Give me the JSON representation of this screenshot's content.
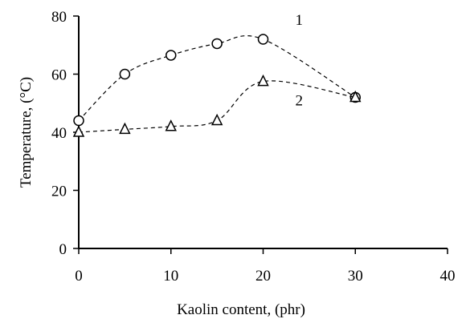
{
  "chart_data": {
    "type": "line",
    "title": "",
    "xlabel": "Kaolin content, (phr)",
    "ylabel": "Temperature, (°C)",
    "xlim": [
      0,
      40
    ],
    "ylim": [
      0,
      80
    ],
    "xticks": [
      0,
      10,
      20,
      30,
      40
    ],
    "yticks": [
      0,
      20,
      40,
      60,
      80
    ],
    "grid": false,
    "series": [
      {
        "name": "1",
        "marker": "circle",
        "line_style": "dashed",
        "x": [
          0,
          5,
          10,
          15,
          20,
          30
        ],
        "y": [
          44,
          60,
          66.5,
          70.5,
          72,
          52
        ]
      },
      {
        "name": "2",
        "marker": "triangle",
        "line_style": "dashed",
        "x": [
          0,
          5,
          10,
          15,
          20,
          30
        ],
        "y": [
          40,
          41,
          42,
          44,
          57.5,
          52
        ]
      }
    ]
  }
}
